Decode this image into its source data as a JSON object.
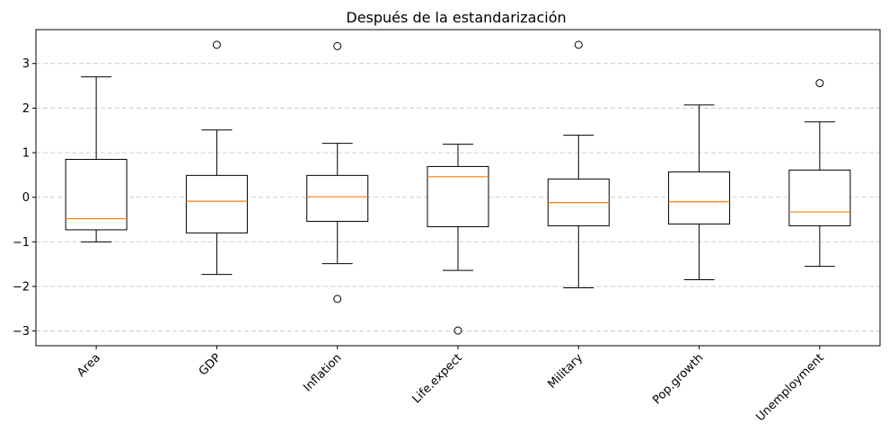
{
  "chart_data": {
    "type": "box",
    "title": "Después de la estandarización",
    "xlabel": "",
    "ylabel": "",
    "categories": [
      "Area",
      "GDP",
      "Inflation",
      "Life.expect",
      "Military",
      "Pop.growth",
      "Unemployment"
    ],
    "boxes": [
      {
        "whisker_low": -1.0,
        "q1": -0.73,
        "median": -0.48,
        "q3": 0.85,
        "whisker_high": 2.7,
        "outliers": []
      },
      {
        "whisker_low": -1.73,
        "q1": -0.8,
        "median": -0.09,
        "q3": 0.49,
        "whisker_high": 1.51,
        "outliers": [
          3.42
        ]
      },
      {
        "whisker_low": -1.49,
        "q1": -0.54,
        "median": 0.01,
        "q3": 0.49,
        "whisker_high": 1.21,
        "outliers": [
          3.39,
          -2.28
        ]
      },
      {
        "whisker_low": -1.64,
        "q1": -0.66,
        "median": 0.46,
        "q3": 0.69,
        "whisker_high": 1.19,
        "outliers": [
          -2.99
        ]
      },
      {
        "whisker_low": -2.03,
        "q1": -0.64,
        "median": -0.12,
        "q3": 0.41,
        "whisker_high": 1.39,
        "outliers": [
          3.42
        ]
      },
      {
        "whisker_low": -1.85,
        "q1": -0.6,
        "median": -0.1,
        "q3": 0.57,
        "whisker_high": 2.07,
        "outliers": []
      },
      {
        "whisker_low": -1.55,
        "q1": -0.64,
        "median": -0.33,
        "q3": 0.61,
        "whisker_high": 1.69,
        "outliers": [
          2.56
        ]
      }
    ],
    "y_ticks": [
      -3,
      -2,
      -1,
      0,
      1,
      2,
      3
    ],
    "ylim": [
      -3.33,
      3.76
    ],
    "grid": "y-dashed",
    "x_tick_rotation": "45",
    "colors": {
      "box": "#000000",
      "median": "#ff7f0e",
      "grid": "#c8c8c8"
    }
  }
}
